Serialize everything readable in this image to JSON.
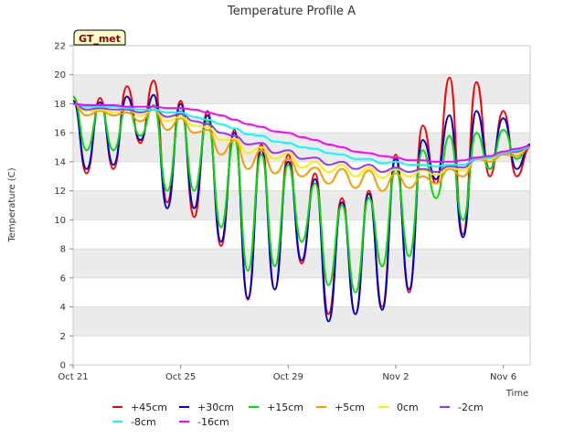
{
  "chart_data": {
    "type": "line",
    "title": "Temperature Profile A",
    "badge": "GT_met",
    "xlabel": "Time",
    "ylabel": "Temperature (C)",
    "xlim": [
      0,
      17
    ],
    "ylim": [
      0,
      22
    ],
    "yticks": [
      0,
      2,
      4,
      6,
      8,
      10,
      12,
      14,
      16,
      18,
      20,
      22
    ],
    "xticks": [
      {
        "day": 0,
        "label": "Oct 21"
      },
      {
        "day": 4,
        "label": "Oct 25"
      },
      {
        "day": 8,
        "label": "Oct 29"
      },
      {
        "day": 12,
        "label": "Nov 2"
      },
      {
        "day": 16,
        "label": "Nov 6"
      }
    ],
    "band_color": "#ebebeb",
    "x_day0": "Oct 21",
    "days": [
      0,
      0.5,
      1,
      1.5,
      2,
      2.5,
      3,
      3.5,
      4,
      4.5,
      5,
      5.5,
      6,
      6.5,
      7,
      7.5,
      8,
      8.5,
      9,
      9.5,
      10,
      10.5,
      11,
      11.5,
      12,
      12.5,
      13,
      13.5,
      14,
      14.5,
      15,
      15.5,
      16,
      16.5,
      17
    ],
    "series": [
      {
        "name": "+45cm",
        "color": "#ff0000",
        "values": [
          18.5,
          13.2,
          18.4,
          13.5,
          19.2,
          15.3,
          19.6,
          11.2,
          18.2,
          10.2,
          17.5,
          8.2,
          16.2,
          4.5,
          15.2,
          5.2,
          14.5,
          7.0,
          13.2,
          3.5,
          11.5,
          3.5,
          12.0,
          4.0,
          14.5,
          5.0,
          16.5,
          12.5,
          19.8,
          9.0,
          19.5,
          13.0,
          17.5,
          13.0,
          15.0
        ]
      },
      {
        "name": "+30cm",
        "color": "#0000cc",
        "values": [
          18.2,
          13.5,
          18.1,
          13.8,
          18.5,
          15.5,
          18.6,
          10.8,
          18.0,
          10.8,
          17.2,
          8.5,
          16.0,
          4.6,
          14.8,
          5.2,
          14.0,
          7.2,
          12.8,
          3.0,
          11.2,
          3.5,
          11.8,
          3.8,
          14.2,
          5.2,
          15.5,
          12.8,
          17.2,
          8.8,
          17.5,
          13.5,
          17.0,
          13.5,
          15.2
        ]
      },
      {
        "name": "+15cm",
        "color": "#00e000",
        "values": [
          18.5,
          14.8,
          17.8,
          14.8,
          17.8,
          15.8,
          17.9,
          12.0,
          17.5,
          12.0,
          16.8,
          9.5,
          15.6,
          6.5,
          14.5,
          6.8,
          13.8,
          8.5,
          12.5,
          5.5,
          11.0,
          5.0,
          11.5,
          6.8,
          13.5,
          7.5,
          14.8,
          11.5,
          15.8,
          10.0,
          16.0,
          13.5,
          16.2,
          14.2,
          15.0
        ]
      },
      {
        "name": "+5cm",
        "color": "#ff9900",
        "values": [
          18.0,
          17.2,
          17.5,
          17.2,
          17.4,
          16.8,
          17.6,
          16.2,
          17.0,
          16.0,
          16.2,
          14.5,
          15.5,
          13.5,
          14.8,
          13.2,
          14.2,
          13.0,
          13.6,
          12.5,
          13.5,
          12.2,
          13.4,
          12.0,
          13.2,
          12.2,
          13.0,
          12.5,
          13.5,
          13.0,
          14.2,
          14.0,
          14.5,
          14.4,
          15.0
        ]
      },
      {
        "name": "0cm",
        "color": "#ffee00",
        "values": [
          18.0,
          17.5,
          17.6,
          17.4,
          17.6,
          17.2,
          17.6,
          16.8,
          17.1,
          16.5,
          16.4,
          15.5,
          15.6,
          14.6,
          15.0,
          14.2,
          14.6,
          13.6,
          14.0,
          13.3,
          13.8,
          13.0,
          13.6,
          12.9,
          13.5,
          13.0,
          13.4,
          13.1,
          13.6,
          13.4,
          14.2,
          14.2,
          14.6,
          14.6,
          15.0
        ]
      },
      {
        "name": "-2cm",
        "color": "#9933ff",
        "values": [
          18.0,
          17.6,
          17.7,
          17.6,
          17.6,
          17.4,
          17.6,
          17.1,
          17.3,
          16.8,
          16.6,
          16.0,
          15.8,
          15.2,
          15.3,
          14.6,
          14.8,
          14.2,
          14.3,
          13.8,
          14.0,
          13.5,
          13.8,
          13.3,
          13.6,
          13.3,
          13.5,
          13.3,
          13.7,
          13.6,
          14.2,
          14.3,
          14.6,
          14.7,
          15.0
        ]
      },
      {
        "name": "-8cm",
        "color": "#00ffff",
        "values": [
          18.0,
          17.8,
          17.8,
          17.8,
          17.7,
          17.6,
          17.6,
          17.4,
          17.4,
          17.1,
          16.9,
          16.6,
          16.3,
          15.9,
          15.8,
          15.4,
          15.3,
          15.0,
          14.9,
          14.6,
          14.5,
          14.2,
          14.2,
          13.9,
          14.0,
          13.8,
          13.8,
          13.7,
          13.8,
          13.8,
          14.2,
          14.3,
          14.6,
          14.8,
          15.0
        ]
      },
      {
        "name": "-16cm",
        "color": "#ff00ff",
        "values": [
          18.0,
          17.9,
          17.9,
          17.9,
          17.8,
          17.8,
          17.8,
          17.7,
          17.7,
          17.6,
          17.4,
          17.2,
          16.9,
          16.6,
          16.4,
          16.1,
          16.0,
          15.7,
          15.5,
          15.2,
          15.0,
          14.7,
          14.6,
          14.4,
          14.3,
          14.1,
          14.1,
          14.0,
          14.0,
          14.1,
          14.3,
          14.4,
          14.7,
          14.9,
          15.1
        ]
      }
    ]
  }
}
